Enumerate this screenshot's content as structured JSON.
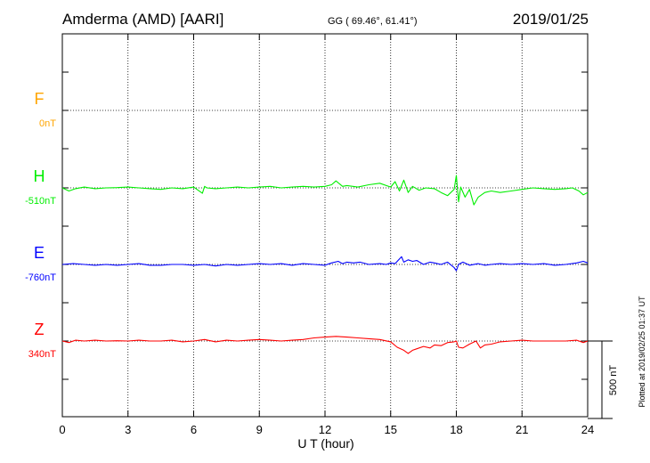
{
  "header": {
    "station": "Amderma (AMD)  [AARI]",
    "coords": "GG ( 69.46°,  61.41°)",
    "date": "2019/01/25"
  },
  "footer": {
    "plotted": "Plotted at 2019/02/25 01:37 UT"
  },
  "chart_data": {
    "type": "line",
    "xlabel": "U T (hour)",
    "xlim": [
      0,
      24
    ],
    "xticks": [
      "0",
      "3",
      "6",
      "9",
      "12",
      "15",
      "18",
      "21",
      "24"
    ],
    "grid": true,
    "scale_bar_label": "500 nT",
    "scale_bar_nT": 500,
    "series": [
      {
        "name": "F",
        "offset_label": "0nT",
        "color": "#ffa500",
        "values": []
      },
      {
        "name": "H",
        "offset_label": "-510nT",
        "color": "#00ee00",
        "x": [
          0.0,
          0.3,
          0.6,
          1.0,
          1.5,
          2.0,
          2.5,
          3.0,
          3.5,
          4.0,
          4.5,
          5.0,
          5.5,
          6.0,
          6.4,
          6.5,
          6.6,
          7.0,
          7.5,
          8.0,
          8.5,
          9.0,
          9.5,
          10.0,
          10.5,
          11.0,
          11.5,
          12.0,
          12.3,
          12.5,
          12.8,
          13.0,
          13.5,
          14.0,
          14.5,
          15.0,
          15.2,
          15.4,
          15.6,
          15.8,
          16.0,
          16.3,
          16.6,
          17.0,
          17.3,
          17.6,
          17.9,
          18.0,
          18.1,
          18.2,
          18.4,
          18.6,
          18.8,
          19.0,
          19.3,
          19.6,
          20.0,
          20.5,
          21.0,
          21.5,
          22.0,
          22.5,
          23.0,
          23.3,
          23.6,
          23.8,
          24.0
        ],
        "y": [
          0,
          -20,
          -5,
          5,
          -5,
          0,
          2,
          5,
          0,
          -5,
          -10,
          0,
          -5,
          5,
          -35,
          10,
          0,
          -5,
          0,
          5,
          0,
          5,
          10,
          0,
          5,
          10,
          5,
          10,
          20,
          45,
          10,
          15,
          5,
          20,
          30,
          5,
          40,
          -20,
          50,
          -30,
          10,
          -15,
          0,
          -5,
          -30,
          -50,
          -10,
          80,
          -90,
          5,
          -60,
          -10,
          -110,
          -60,
          -30,
          -20,
          -30,
          -20,
          -10,
          0,
          -5,
          -10,
          -5,
          0,
          -20,
          -45,
          -30
        ]
      },
      {
        "name": "E",
        "offset_label": "-760nT",
        "color": "#0000ff",
        "x": [
          0.0,
          0.5,
          1.0,
          1.5,
          2.0,
          2.5,
          3.0,
          3.5,
          4.0,
          4.5,
          5.0,
          5.5,
          6.0,
          6.5,
          7.0,
          7.5,
          8.0,
          8.5,
          9.0,
          9.5,
          10.0,
          10.5,
          11.0,
          11.5,
          12.0,
          12.3,
          12.6,
          12.8,
          13.0,
          13.3,
          13.6,
          14.0,
          14.5,
          14.8,
          15.0,
          15.2,
          15.5,
          15.6,
          15.8,
          16.0,
          16.2,
          16.5,
          16.8,
          17.0,
          17.3,
          17.6,
          17.9,
          18.0,
          18.1,
          18.3,
          18.6,
          19.0,
          19.3,
          19.6,
          20.0,
          20.5,
          21.0,
          21.5,
          22.0,
          22.5,
          23.0,
          23.5,
          23.8,
          24.0
        ],
        "y": [
          0,
          5,
          0,
          -5,
          0,
          -5,
          0,
          5,
          -5,
          -5,
          0,
          0,
          -5,
          0,
          -10,
          0,
          -5,
          0,
          5,
          0,
          5,
          -5,
          5,
          0,
          -5,
          10,
          20,
          5,
          15,
          10,
          15,
          0,
          5,
          0,
          10,
          5,
          50,
          15,
          30,
          20,
          25,
          0,
          15,
          10,
          0,
          15,
          -20,
          -40,
          0,
          15,
          -5,
          5,
          -5,
          0,
          5,
          0,
          5,
          0,
          5,
          -5,
          0,
          10,
          20,
          10
        ]
      },
      {
        "name": "Z",
        "offset_label": "340nT",
        "color": "#ff0000",
        "x": [
          0.0,
          0.3,
          0.6,
          1.0,
          1.5,
          2.0,
          2.5,
          3.0,
          3.5,
          4.0,
          4.5,
          5.0,
          5.5,
          6.0,
          6.5,
          7.0,
          7.5,
          8.0,
          8.5,
          9.0,
          9.5,
          10.0,
          10.5,
          11.0,
          11.5,
          12.0,
          12.5,
          13.0,
          13.5,
          14.0,
          14.5,
          15.0,
          15.3,
          15.6,
          15.8,
          16.0,
          16.2,
          16.5,
          16.8,
          17.0,
          17.3,
          17.6,
          17.9,
          18.0,
          18.1,
          18.3,
          18.6,
          18.9,
          19.1,
          19.3,
          19.6,
          20.0,
          20.5,
          21.0,
          21.5,
          22.0,
          22.5,
          23.0,
          23.5,
          23.8,
          24.0
        ],
        "y": [
          0,
          -10,
          5,
          0,
          5,
          0,
          2,
          0,
          5,
          0,
          0,
          5,
          -5,
          0,
          10,
          -5,
          5,
          0,
          5,
          10,
          5,
          0,
          5,
          10,
          20,
          25,
          30,
          25,
          20,
          15,
          10,
          -5,
          -40,
          -60,
          -80,
          -60,
          -50,
          -35,
          -45,
          -25,
          -30,
          -10,
          -5,
          0,
          -40,
          -45,
          -20,
          0,
          -45,
          -25,
          -20,
          -5,
          0,
          5,
          0,
          0,
          0,
          0,
          5,
          -10,
          0
        ]
      }
    ]
  }
}
